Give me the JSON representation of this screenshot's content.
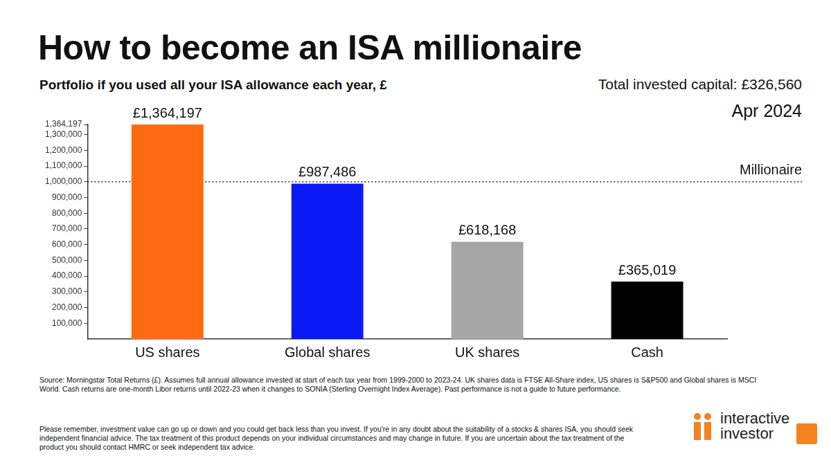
{
  "chart_data": {
    "type": "bar",
    "title": "How to become an ISA millionaire",
    "subtitle": "Portfolio if you used all your ISA allowance each year, £",
    "notes": [
      "Total invested capital: £326,560",
      "Apr 2024"
    ],
    "categories": [
      "US shares",
      "Global shares",
      "UK shares",
      "Cash"
    ],
    "values": [
      1364197,
      987486,
      618168,
      365019
    ],
    "value_labels": [
      "£1,364,197",
      "£987,486",
      "£618,168",
      "£365,019"
    ],
    "colors": [
      "#ff6a13",
      "#0a1af5",
      "#a6a6a6",
      "#000000"
    ],
    "data_labels": true,
    "ylim": [
      0,
      1364197
    ],
    "yticks": [
      {
        "value": 100000,
        "label": "100,000"
      },
      {
        "value": 200000,
        "label": "200,000"
      },
      {
        "value": 300000,
        "label": "300,000"
      },
      {
        "value": 400000,
        "label": "400,000"
      },
      {
        "value": 500000,
        "label": "500,000"
      },
      {
        "value": 600000,
        "label": "600,000"
      },
      {
        "value": 700000,
        "label": "700,000"
      },
      {
        "value": 800000,
        "label": "800,000"
      },
      {
        "value": 900000,
        "label": "900,000"
      },
      {
        "value": 1000000,
        "label": "1,000,000"
      },
      {
        "value": 1100000,
        "label": "1,100,000"
      },
      {
        "value": 1200000,
        "label": "1,200,000"
      },
      {
        "value": 1300000,
        "label": "1,300,000"
      },
      {
        "value": 1364197,
        "label": "1,364,197"
      }
    ],
    "grid": false,
    "annotations": [
      {
        "label": "Millionaire",
        "value": 1000000,
        "line_style": "dotted"
      }
    ],
    "source": "Source: Morningstar Total Returns (£). Assumes full annual allowance invested at start of each tax year from 1999-2000 to 2023-24. UK shares data is FTSE All-Share index, US shares is S&P500 and Global shares is MSCI World. Cash returns are one-month Libor returns until 2022-23 when it changes to SONIA (Sterling Overnight Index Average). Past performance is not a guide to future performance.",
    "disclaimer": "Please remember, investment value can go up or down and you could get back less than you invest. If you're in any doubt about the suitability of a stocks & shares ISA, you should seek independent financial advice. The tax treatment of this product depends on your individual circumstances and may change in future. If you are uncertain about the tax treatment of the product you should contact HMRC or seek independent tax advice.",
    "brand": [
      "interactive",
      "investor"
    ]
  }
}
